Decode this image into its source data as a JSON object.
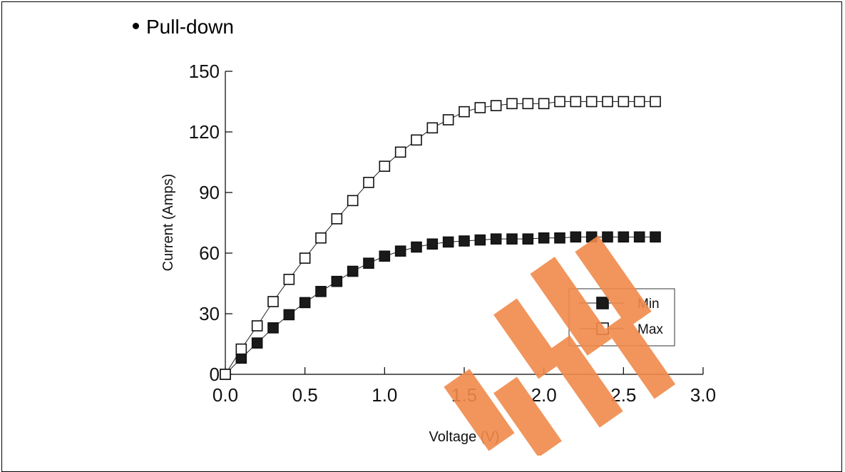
{
  "heading": {
    "bullet_text": "Pull-down"
  },
  "colors": {
    "axis": "#000000",
    "series_line": "#222222",
    "min_fill": "#1a1a1a",
    "max_fill": "#ffffff",
    "watermark": "#f08a4b"
  },
  "chart_data": {
    "type": "line",
    "title": "",
    "xlabel": "Voltage  (V)",
    "ylabel": "Current  (Amps)",
    "xlim": [
      0.0,
      3.0
    ],
    "ylim": [
      0,
      150
    ],
    "xticks": [
      "0.0",
      "0.5",
      "1.0",
      "1.5",
      "2.0",
      "2.5",
      "3.0"
    ],
    "yticks": [
      "0",
      "30",
      "60",
      "90",
      "120",
      "150"
    ],
    "grid": false,
    "legend": "inside right-lower",
    "x": [
      0.0,
      0.1,
      0.2,
      0.3,
      0.4,
      0.5,
      0.6,
      0.7,
      0.8,
      0.9,
      1.0,
      1.1,
      1.2,
      1.3,
      1.4,
      1.5,
      1.6,
      1.7,
      1.8,
      1.9,
      2.0,
      2.1,
      2.2,
      2.3,
      2.4,
      2.5,
      2.6,
      2.7
    ],
    "series": [
      {
        "name": "Min",
        "marker": "filled-square",
        "values": [
          0,
          8,
          15.5,
          23,
          29.5,
          35.5,
          41,
          46,
          51,
          55,
          58.5,
          61,
          63,
          64.5,
          65.5,
          66,
          66.5,
          67,
          67,
          67,
          67.5,
          67.5,
          68,
          68,
          68,
          68,
          68,
          68
        ]
      },
      {
        "name": "Max",
        "marker": "open-square",
        "values": [
          0,
          12.5,
          24,
          36,
          47,
          57.5,
          67.5,
          77,
          86,
          95,
          103,
          110,
          116,
          122,
          126,
          130,
          132,
          133,
          134,
          134,
          134,
          135,
          135,
          135,
          135,
          135,
          135,
          135
        ]
      }
    ]
  }
}
